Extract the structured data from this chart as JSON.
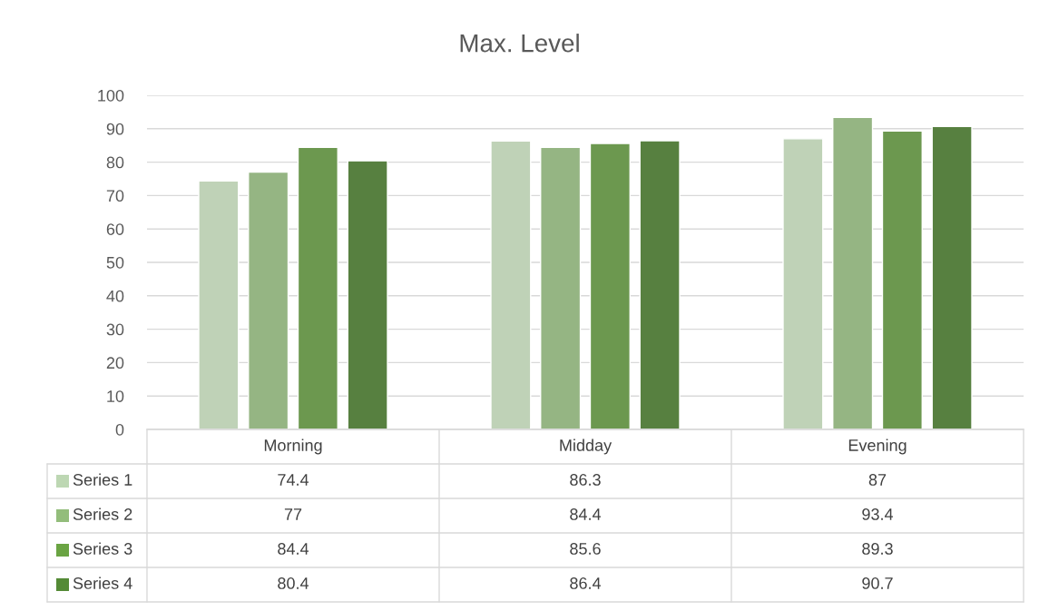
{
  "chart_data": {
    "type": "bar",
    "title": "Max. Level",
    "categories": [
      "Morning",
      "Midday",
      "Evening"
    ],
    "series": [
      {
        "name": "Series 1",
        "color": "#bdd7b3",
        "values": [
          74.4,
          86.3,
          87
        ]
      },
      {
        "name": "Series 2",
        "color": "#93bd7b",
        "values": [
          77,
          84.4,
          93.4
        ]
      },
      {
        "name": "Series 3",
        "color": "#6aa443",
        "values": [
          84.4,
          85.6,
          89.3
        ]
      },
      {
        "name": "Series 4",
        "color": "#548a36",
        "values": [
          80.4,
          86.4,
          90.7
        ]
      }
    ],
    "ylim": [
      0,
      100
    ],
    "yticks": [
      0,
      10,
      20,
      30,
      40,
      50,
      60,
      70,
      80,
      90,
      100
    ],
    "grid": "y",
    "legend": "bottom",
    "data_labels": true
  }
}
